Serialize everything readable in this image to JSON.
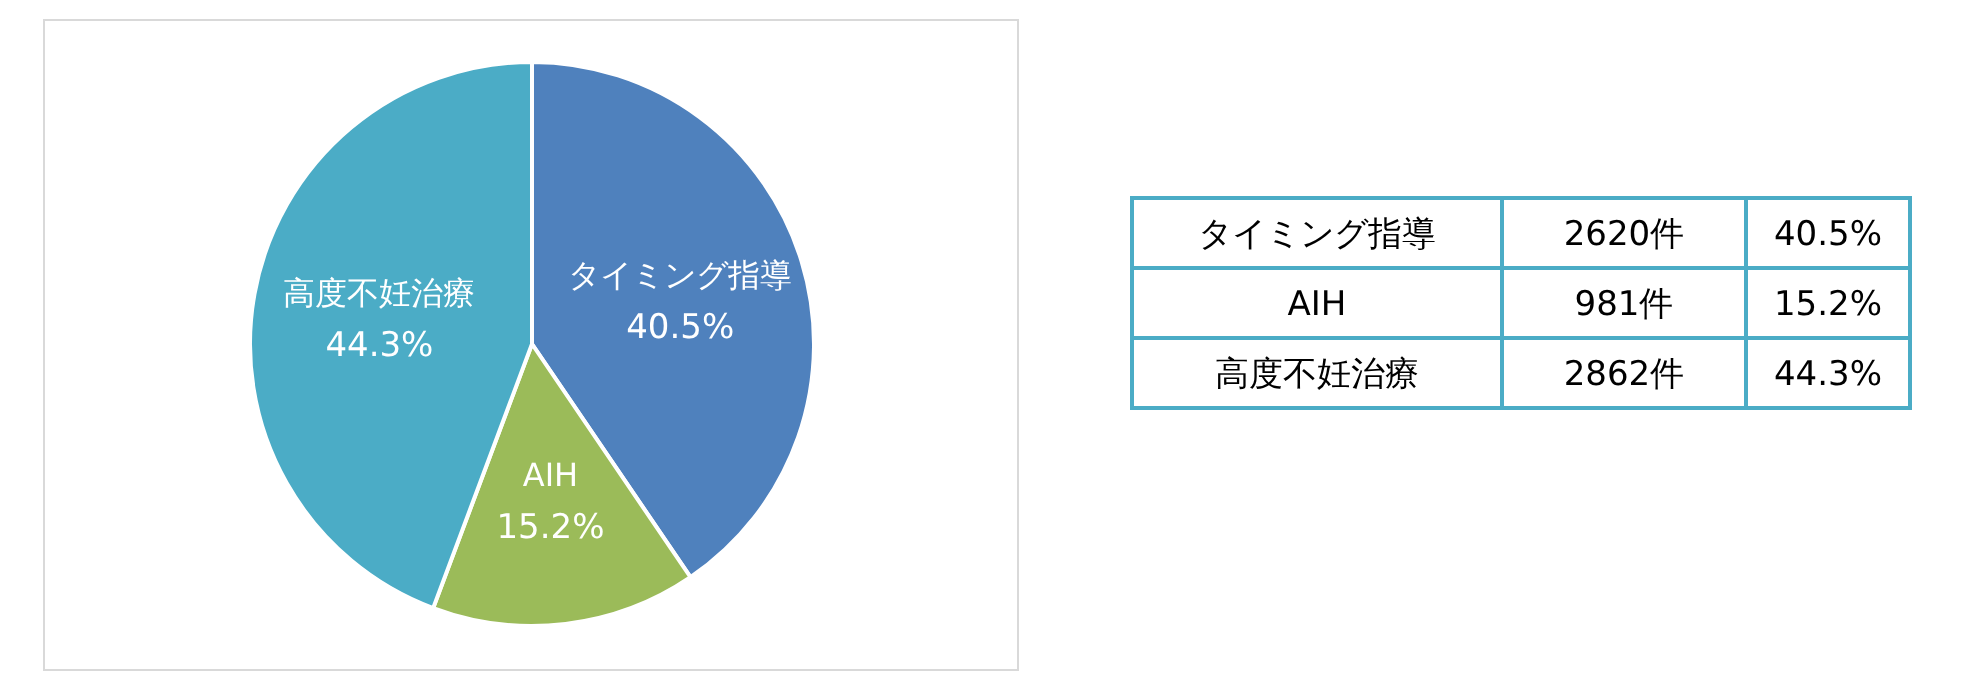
{
  "chart_data": [
    {
      "type": "pie",
      "categories": [
        "タイミング指導",
        "AIH",
        "高度不妊治療"
      ],
      "values": [
        40.5,
        15.2,
        44.3
      ],
      "colors": [
        "#4f81bd",
        "#9bbb59",
        "#4bacc6"
      ],
      "value_labels": [
        "40.5%",
        "15.2%",
        "44.3%"
      ]
    },
    {
      "type": "other",
      "annotations": [
        "タイミング指導",
        "2620件",
        "40.5%",
        "AIH",
        "981件",
        "15.2%",
        "高度不妊治療",
        "2862件",
        "44.3%"
      ]
    }
  ]
}
